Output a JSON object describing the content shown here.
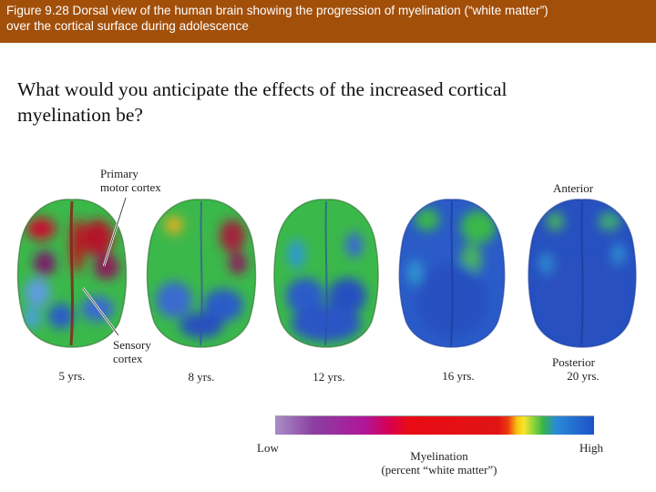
{
  "caption": {
    "line1": "Figure 9.28 Dorsal view of the human brain showing the progression of myelination (“white matter”)",
    "line2": "over the cortical surface during adolescence"
  },
  "question": {
    "line1": "What would you anticipate the effects of the increased cortical",
    "line2": "myelination be?"
  },
  "figure": {
    "primary_label_1": "Primary",
    "primary_label_2": "motor cortex",
    "sensory_label_1": "Sensory",
    "sensory_label_2": "cortex",
    "anterior_label": "Anterior",
    "posterior_label": "Posterior",
    "ages": [
      "5 yrs.",
      "8 yrs.",
      "12 yrs.",
      "16 yrs.",
      "20 yrs."
    ],
    "scale": {
      "low_label": "Low",
      "high_label": "High",
      "title_1": "Myelination",
      "title_2": "(percent “white matter”)"
    },
    "colors": {
      "low": "#1c52c9",
      "mid": "#3bb84a",
      "high": "#c8102e"
    }
  }
}
